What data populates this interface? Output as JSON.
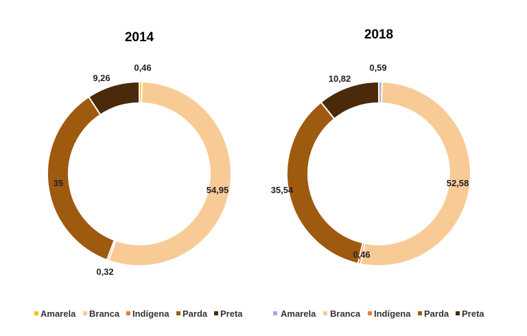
{
  "chart_data": [
    {
      "type": "donut",
      "title": "2014",
      "categories": [
        "Amarela",
        "Branca",
        "Indígena",
        "Parda",
        "Preta"
      ],
      "values": [
        0.46,
        54.95,
        0.32,
        35,
        9.26
      ],
      "labels": [
        "0,46",
        "54,95",
        "0,32",
        "35",
        "9,26"
      ],
      "colors": [
        "#FFC000",
        "#F8CB96",
        "#ED7D31",
        "#9E5A0F",
        "#4A2A0A"
      ],
      "legend_marker_colors": [
        "#FFC000",
        "#F8CB96",
        "#ED7D31",
        "#9E5A0F",
        "#4A2A0A"
      ],
      "legend": "bottom"
    },
    {
      "type": "donut",
      "title": "2018",
      "categories": [
        "Amarela",
        "Branca",
        "Indígena",
        "Parda",
        "Preta"
      ],
      "values": [
        0.59,
        52.58,
        0.46,
        35.54,
        10.82
      ],
      "labels": [
        "0,59",
        "52,58",
        "0,46",
        "35,54",
        "10,82"
      ],
      "colors": [
        "#B4A7D6",
        "#F8CB96",
        "#ED7D31",
        "#9E5A0F",
        "#4A2A0A"
      ],
      "legend_marker_colors": [
        "#B4A7D6",
        "#F8CB96",
        "#ED7D31",
        "#9E5A0F",
        "#4A2A0A"
      ],
      "legend": "bottom"
    }
  ]
}
